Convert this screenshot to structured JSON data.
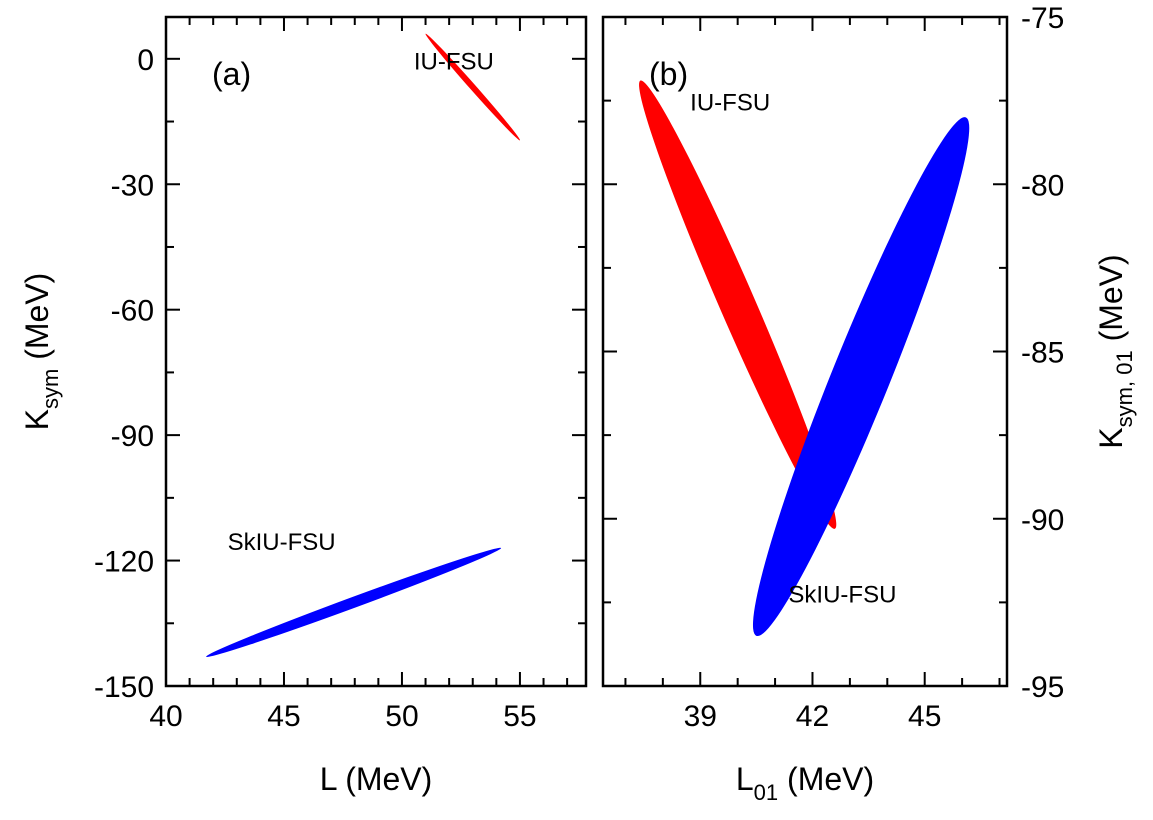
{
  "chart_data": [
    {
      "type": "scatter",
      "panel_label": "(a)",
      "xlabel": "L (MeV)",
      "ylabel": "K",
      "ylabel_sub": "sym",
      "ylabel_unit": " (MeV)",
      "xlim": [
        40,
        57.8
      ],
      "ylim": [
        -150,
        10
      ],
      "xticks": [
        40,
        45,
        50,
        55
      ],
      "yticks": [
        0,
        -30,
        -60,
        -90,
        -120,
        -150
      ],
      "grid": false,
      "ellipses": [
        {
          "name": "IU-FSU",
          "color": "#ff0000",
          "endpoints": [
            [
              51.0,
              6.0
            ],
            [
              55.0,
              -19.5
            ]
          ],
          "width": 0.16
        },
        {
          "name": "SkIU-FSU",
          "color": "#0000ff",
          "endpoints": [
            [
              41.7,
              -143.0
            ],
            [
              54.2,
              -117.0
            ]
          ],
          "width": 0.46
        }
      ],
      "annotations": [
        {
          "text": "IU-FSU",
          "x": 52.2,
          "y": -2.5
        },
        {
          "text": "SkIU-FSU",
          "x": 44.9,
          "y": -117.5
        }
      ]
    },
    {
      "type": "scatter",
      "panel_label": "(b)",
      "xlabel": "L",
      "xlabel_sub": "01",
      "xlabel_unit": " (MeV)",
      "ylabel": "K",
      "ylabel_sub": "sym, 01",
      "ylabel_unit": " (MeV)",
      "xlim": [
        36.4,
        47.2
      ],
      "ylim": [
        -95,
        -75
      ],
      "xticks": [
        39,
        42,
        45
      ],
      "yticks": [
        -75,
        -80,
        -85,
        -90,
        -95
      ],
      "grid": false,
      "ellipses": [
        {
          "name": "IU-FSU",
          "color": "#ff0000",
          "endpoints": [
            [
              37.4,
              -76.9
            ],
            [
              42.6,
              -90.3
            ]
          ],
          "width": 0.95
        },
        {
          "name": "SkIU-FSU",
          "color": "#0000ff",
          "endpoints": [
            [
              40.5,
              -93.5
            ],
            [
              46.1,
              -78.0
            ]
          ],
          "width": 1.55
        }
      ],
      "annotations": [
        {
          "text": "IU-FSU",
          "x": 39.8,
          "y": -77.8
        },
        {
          "text": "SkIU-FSU",
          "x": 42.8,
          "y": -92.5
        }
      ]
    }
  ]
}
